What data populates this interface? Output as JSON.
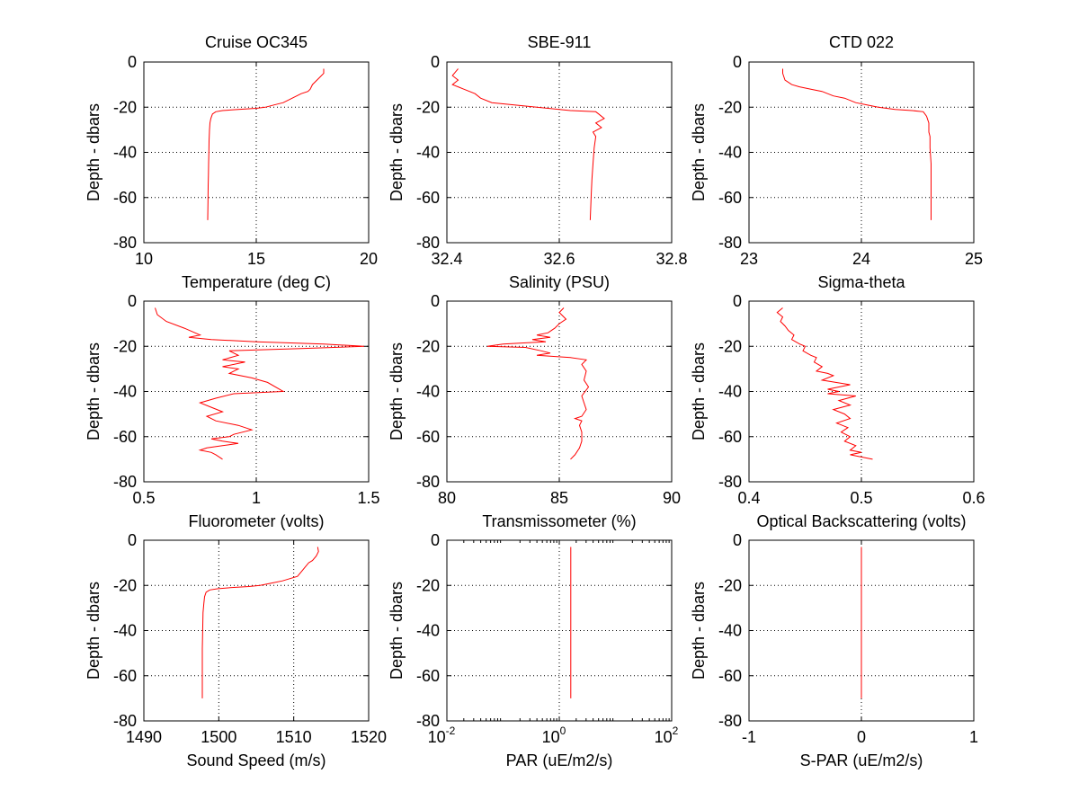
{
  "figure": {
    "background": "#ffffff",
    "line_color": "#ff0000",
    "grid_color": "#000000"
  },
  "chart_data": [
    {
      "type": "line",
      "title": "Cruise OC345",
      "xlabel": "Temperature (deg C)",
      "ylabel": "Depth - dbars",
      "xlim": [
        10,
        20
      ],
      "ylim": [
        -80,
        0
      ],
      "xscale": "linear",
      "xticks": [
        10,
        15,
        20
      ],
      "xtick_labels": [
        "10",
        "15",
        "20"
      ],
      "yticks": [
        -80,
        -60,
        -40,
        -20,
        0
      ],
      "ytick_labels": [
        "-80",
        "-60",
        "-40",
        "-20",
        "0"
      ],
      "grid": true,
      "series": [
        {
          "x": [
            18.0,
            18.0,
            17.8,
            17.6,
            17.5,
            17.4,
            17.3,
            17.0,
            16.6,
            16.2,
            15.8,
            15.4,
            15.0,
            14.2,
            13.5,
            13.2,
            13.05,
            12.98,
            12.94,
            12.92,
            12.9,
            12.89,
            12.88,
            12.87,
            12.86,
            12.85,
            12.84
          ],
          "y": [
            -3,
            -5,
            -7,
            -9,
            -10,
            -12,
            -13,
            -14,
            -16,
            -18,
            -19,
            -20,
            -20.5,
            -21,
            -21.5,
            -22,
            -23,
            -25,
            -27,
            -30,
            -35,
            -40,
            -45,
            -50,
            -55,
            -62,
            -70
          ]
        }
      ]
    },
    {
      "type": "line",
      "title": "SBE-911",
      "xlabel": "Salinity (PSU)",
      "ylabel": "Depth - dbars",
      "xlim": [
        32.4,
        32.8
      ],
      "ylim": [
        -80,
        0
      ],
      "xscale": "linear",
      "xticks": [
        32.4,
        32.6,
        32.8
      ],
      "xtick_labels": [
        "32.4",
        "32.6",
        "32.8"
      ],
      "yticks": [
        -80,
        -60,
        -40,
        -20,
        0
      ],
      "ytick_labels": [
        "-80",
        "-60",
        "-40",
        "-20",
        "0"
      ],
      "grid": true,
      "series": [
        {
          "x": [
            32.42,
            32.41,
            32.42,
            32.41,
            32.42,
            32.43,
            32.45,
            32.46,
            32.48,
            32.52,
            32.56,
            32.62,
            32.665,
            32.67,
            32.68,
            32.665,
            32.675,
            32.66,
            32.665,
            32.662,
            32.66,
            32.658,
            32.657,
            32.656,
            32.655
          ],
          "y": [
            -3,
            -6,
            -8,
            -10,
            -11,
            -12,
            -14,
            -16,
            -18,
            -19,
            -20,
            -21.5,
            -22,
            -23,
            -25,
            -27,
            -29,
            -31,
            -33,
            -38,
            -45,
            -52,
            -58,
            -64,
            -70
          ]
        }
      ]
    },
    {
      "type": "line",
      "title": "CTD 022",
      "xlabel": "Sigma-theta",
      "ylabel": "Depth - dbars",
      "xlim": [
        23,
        25
      ],
      "ylim": [
        -80,
        0
      ],
      "xscale": "linear",
      "xticks": [
        23,
        24,
        25
      ],
      "xtick_labels": [
        "23",
        "24",
        "25"
      ],
      "yticks": [
        -80,
        -60,
        -40,
        -20,
        0
      ],
      "ytick_labels": [
        "-80",
        "-60",
        "-40",
        "-20",
        "0"
      ],
      "grid": true,
      "series": [
        {
          "x": [
            23.3,
            23.3,
            23.32,
            23.38,
            23.45,
            23.55,
            23.65,
            23.75,
            23.85,
            23.95,
            24.05,
            24.15,
            24.3,
            24.45,
            24.55,
            24.58,
            24.6,
            24.6,
            24.61,
            24.61,
            24.62,
            24.62,
            24.62,
            24.62,
            24.62
          ],
          "y": [
            -3,
            -5,
            -8,
            -10,
            -11,
            -12,
            -13,
            -15,
            -16,
            -18,
            -19,
            -20,
            -21,
            -21.5,
            -22,
            -24,
            -27,
            -31,
            -33,
            -38,
            -45,
            -52,
            -58,
            -64,
            -70
          ]
        }
      ]
    },
    {
      "type": "line",
      "title": "",
      "xlabel": "Fluorometer (volts)",
      "ylabel": "Depth - dbars",
      "xlim": [
        0.5,
        1.5
      ],
      "ylim": [
        -80,
        0
      ],
      "xscale": "linear",
      "xticks": [
        0.5,
        1,
        1.5
      ],
      "xtick_labels": [
        "0.5",
        "1",
        "1.5"
      ],
      "yticks": [
        -80,
        -60,
        -40,
        -20,
        0
      ],
      "ytick_labels": [
        "-80",
        "-60",
        "-40",
        "-20",
        "0"
      ],
      "grid": true,
      "series": [
        {
          "x": [
            0.55,
            0.56,
            0.6,
            0.68,
            0.75,
            0.7,
            0.8,
            1.0,
            1.3,
            1.48,
            1.2,
            0.88,
            0.92,
            0.85,
            0.95,
            0.85,
            0.92,
            0.88,
            0.98,
            1.05,
            1.12,
            0.9,
            0.82,
            0.75,
            0.8,
            0.85,
            0.78,
            0.82,
            0.92,
            0.98,
            0.9,
            0.88,
            0.8,
            0.85,
            0.92,
            0.85,
            0.78,
            0.75,
            0.8,
            0.82,
            0.85
          ],
          "y": [
            -3,
            -6,
            -9,
            -12,
            -15,
            -16,
            -17,
            -18,
            -19,
            -20,
            -21,
            -22,
            -24,
            -26,
            -27,
            -29,
            -30,
            -32,
            -34,
            -36,
            -40,
            -41,
            -43,
            -45,
            -47,
            -49,
            -51,
            -53,
            -55,
            -57,
            -59,
            -60,
            -61,
            -62,
            -63,
            -64,
            -65,
            -66,
            -67,
            -68,
            -70
          ]
        }
      ]
    },
    {
      "type": "line",
      "title": "",
      "xlabel": "Transmissometer (%)",
      "ylabel": "Depth - dbars",
      "xlim": [
        80,
        90
      ],
      "ylim": [
        -80,
        0
      ],
      "xscale": "linear",
      "xticks": [
        80,
        85,
        90
      ],
      "xtick_labels": [
        "80",
        "85",
        "90"
      ],
      "yticks": [
        -80,
        -60,
        -40,
        -20,
        0
      ],
      "ytick_labels": [
        "-80",
        "-60",
        "-40",
        "-20",
        "0"
      ],
      "grid": true,
      "series": [
        {
          "x": [
            85.2,
            85.0,
            85.3,
            85.0,
            84.8,
            84.5,
            84.0,
            84.6,
            83.8,
            84.4,
            82.5,
            81.8,
            83.5,
            84.2,
            84.6,
            84.0,
            85.5,
            86.2,
            86.0,
            86.2,
            86.1,
            86.3,
            86.0,
            86.1,
            86.2,
            86.0,
            85.7,
            86.0,
            85.9,
            86.0,
            86.0,
            85.9,
            85.7,
            85.5
          ],
          "y": [
            -3,
            -5,
            -8,
            -10,
            -12,
            -14,
            -15,
            -16,
            -17,
            -18,
            -19,
            -20,
            -20.5,
            -22,
            -23,
            -24,
            -25,
            -26,
            -28,
            -31,
            -35,
            -38,
            -42,
            -45,
            -48,
            -51,
            -52,
            -53,
            -55,
            -58,
            -62,
            -65,
            -68,
            -70
          ]
        }
      ]
    },
    {
      "type": "line",
      "title": "",
      "xlabel": "Optical Backscattering (volts)",
      "ylabel": "Depth - dbars",
      "xlim": [
        0.4,
        0.6
      ],
      "ylim": [
        -80,
        0
      ],
      "xscale": "linear",
      "xticks": [
        0.4,
        0.5,
        0.6
      ],
      "xtick_labels": [
        "0.4",
        "0.5",
        "0.6"
      ],
      "yticks": [
        -80,
        -60,
        -40,
        -20,
        0
      ],
      "ytick_labels": [
        "-80",
        "-60",
        "-40",
        "-20",
        "0"
      ],
      "grid": true,
      "series": [
        {
          "x": [
            0.43,
            0.425,
            0.43,
            0.428,
            0.432,
            0.435,
            0.44,
            0.438,
            0.445,
            0.45,
            0.448,
            0.455,
            0.46,
            0.458,
            0.465,
            0.46,
            0.47,
            0.475,
            0.465,
            0.49,
            0.47,
            0.48,
            0.47,
            0.495,
            0.48,
            0.49,
            0.475,
            0.485,
            0.49,
            0.478,
            0.488,
            0.482,
            0.49,
            0.485,
            0.495,
            0.49,
            0.5,
            0.49,
            0.51
          ],
          "y": [
            -3,
            -5,
            -7,
            -9,
            -11,
            -13,
            -15,
            -17,
            -19,
            -20,
            -22,
            -24,
            -25,
            -27,
            -29,
            -31,
            -32,
            -33,
            -35,
            -37,
            -39,
            -40,
            -41,
            -42,
            -44,
            -46,
            -48,
            -50,
            -52,
            -54,
            -56,
            -58,
            -60,
            -62,
            -64,
            -66,
            -67,
            -68,
            -70
          ]
        }
      ]
    },
    {
      "type": "line",
      "title": "",
      "xlabel": "Sound Speed (m/s)",
      "ylabel": "Depth - dbars",
      "xlim": [
        1490,
        1520
      ],
      "ylim": [
        -80,
        0
      ],
      "xscale": "linear",
      "xticks": [
        1490,
        1500,
        1510,
        1520
      ],
      "xtick_labels": [
        "1490",
        "1500",
        "1510",
        "1520"
      ],
      "yticks": [
        -80,
        -60,
        -40,
        -20,
        0
      ],
      "ytick_labels": [
        "-80",
        "-60",
        "-40",
        "-20",
        "0"
      ],
      "grid": true,
      "series": [
        {
          "x": [
            1513.2,
            1513.3,
            1513.0,
            1512.5,
            1512.0,
            1511.5,
            1511.0,
            1510.5,
            1509.5,
            1508.5,
            1507.0,
            1505.5,
            1504.0,
            1501.5,
            1499.8,
            1498.8,
            1498.3,
            1498.1,
            1498.0,
            1497.9,
            1497.85,
            1497.8,
            1497.8,
            1497.8,
            1497.8
          ],
          "y": [
            -3,
            -5,
            -7,
            -9,
            -10,
            -12,
            -14,
            -16,
            -17,
            -18,
            -19,
            -20,
            -20.5,
            -21,
            -21.5,
            -22,
            -23,
            -25,
            -28,
            -32,
            -40,
            -48,
            -56,
            -63,
            -70
          ]
        }
      ]
    },
    {
      "type": "line",
      "title": "",
      "xlabel": "PAR (uE/m2/s)",
      "ylabel": "Depth - dbars",
      "xlim": [
        0.01,
        100
      ],
      "ylim": [
        -80,
        0
      ],
      "xscale": "log",
      "xticks": [
        0.01,
        1,
        100
      ],
      "xtick_labels": [
        "10",
        "10",
        "10"
      ],
      "xtick_exponents": [
        "-2",
        "0",
        "2"
      ],
      "yticks": [
        -80,
        -60,
        -40,
        -20,
        0
      ],
      "ytick_labels": [
        "-80",
        "-60",
        "-40",
        "-20",
        "0"
      ],
      "grid": true,
      "series": [
        {
          "x": [
            1.6,
            1.6
          ],
          "y": [
            -3,
            -70
          ]
        }
      ]
    },
    {
      "type": "line",
      "title": "",
      "xlabel": "S-PAR  (uE/m2/s)",
      "ylabel": "Depth - dbars",
      "xlim": [
        -1,
        1
      ],
      "ylim": [
        -80,
        0
      ],
      "xscale": "linear",
      "xticks": [
        -1,
        0,
        1
      ],
      "xtick_labels": [
        "-1",
        "0",
        "1"
      ],
      "yticks": [
        -80,
        -60,
        -40,
        -20,
        0
      ],
      "ytick_labels": [
        "-80",
        "-60",
        "-40",
        "-20",
        "0"
      ],
      "grid": true,
      "series": [
        {
          "x": [
            0,
            0
          ],
          "y": [
            -3,
            -70
          ]
        }
      ]
    }
  ]
}
